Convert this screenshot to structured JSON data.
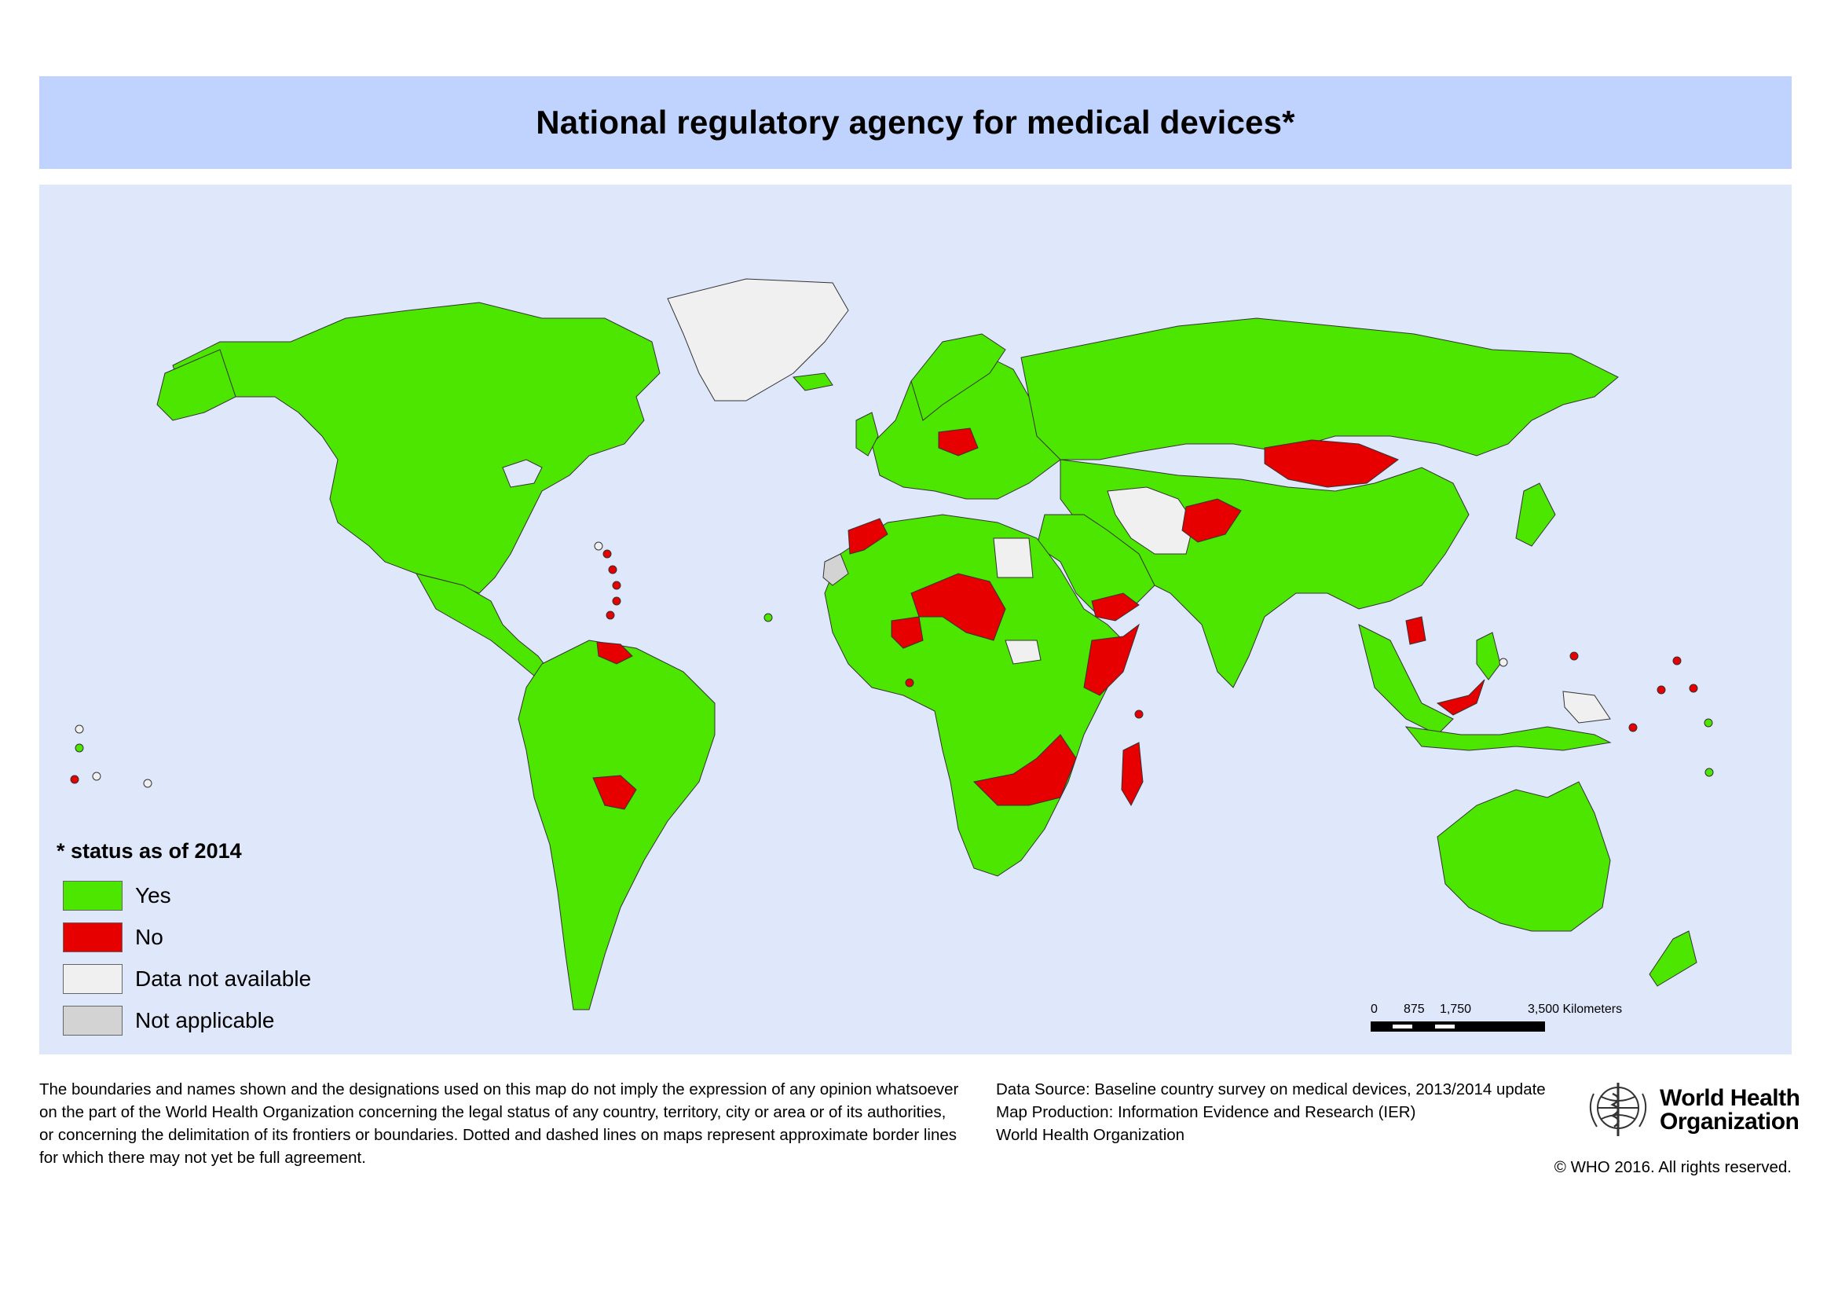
{
  "title": "National regulatory agency for medical devices*",
  "legend": {
    "title": "* status as of 2014",
    "items": [
      {
        "label": "Yes",
        "color": "#4ce600"
      },
      {
        "label": "No",
        "color": "#e60000"
      },
      {
        "label": "Data not available",
        "color": "#f0f0f0"
      },
      {
        "label": "Not applicable",
        "color": "#d3d3d3"
      }
    ]
  },
  "scale_bar": {
    "ticks": [
      "0",
      "875",
      "1,750",
      "3,500 Kilometers"
    ]
  },
  "disclaimer": [
    "The boundaries and names shown and the designations used on this map do not imply the expression of any opinion whatsoever",
    "on the part of the World Health Organization concerning the legal status of any country, territory, city or area or of its authorities,",
    "or concerning the delimitation of its frontiers or boundaries. Dotted and dashed lines on maps represent approximate border lines",
    "for which there may not yet be full agreement."
  ],
  "source": [
    "Data Source: Baseline country survey on medical devices, 2013/2014 update",
    "Map Production: Information Evidence and Research (IER)",
    "World Health Organization"
  ],
  "logo": {
    "line1": "World Health",
    "line2": "Organization"
  },
  "copyright": "© WHO 2016. All rights reserved.",
  "map_regions": {
    "status_yes": "Yes",
    "status_no": "No",
    "status_na": "Data not available",
    "status_notapp": "Not applicable"
  },
  "colors": {
    "yes": "#4ce600",
    "no": "#e60000",
    "not_available": "#f0f0f0",
    "not_applicable": "#d3d3d3",
    "ocean": "#dfe7fb",
    "header": "#bfd3fe"
  }
}
